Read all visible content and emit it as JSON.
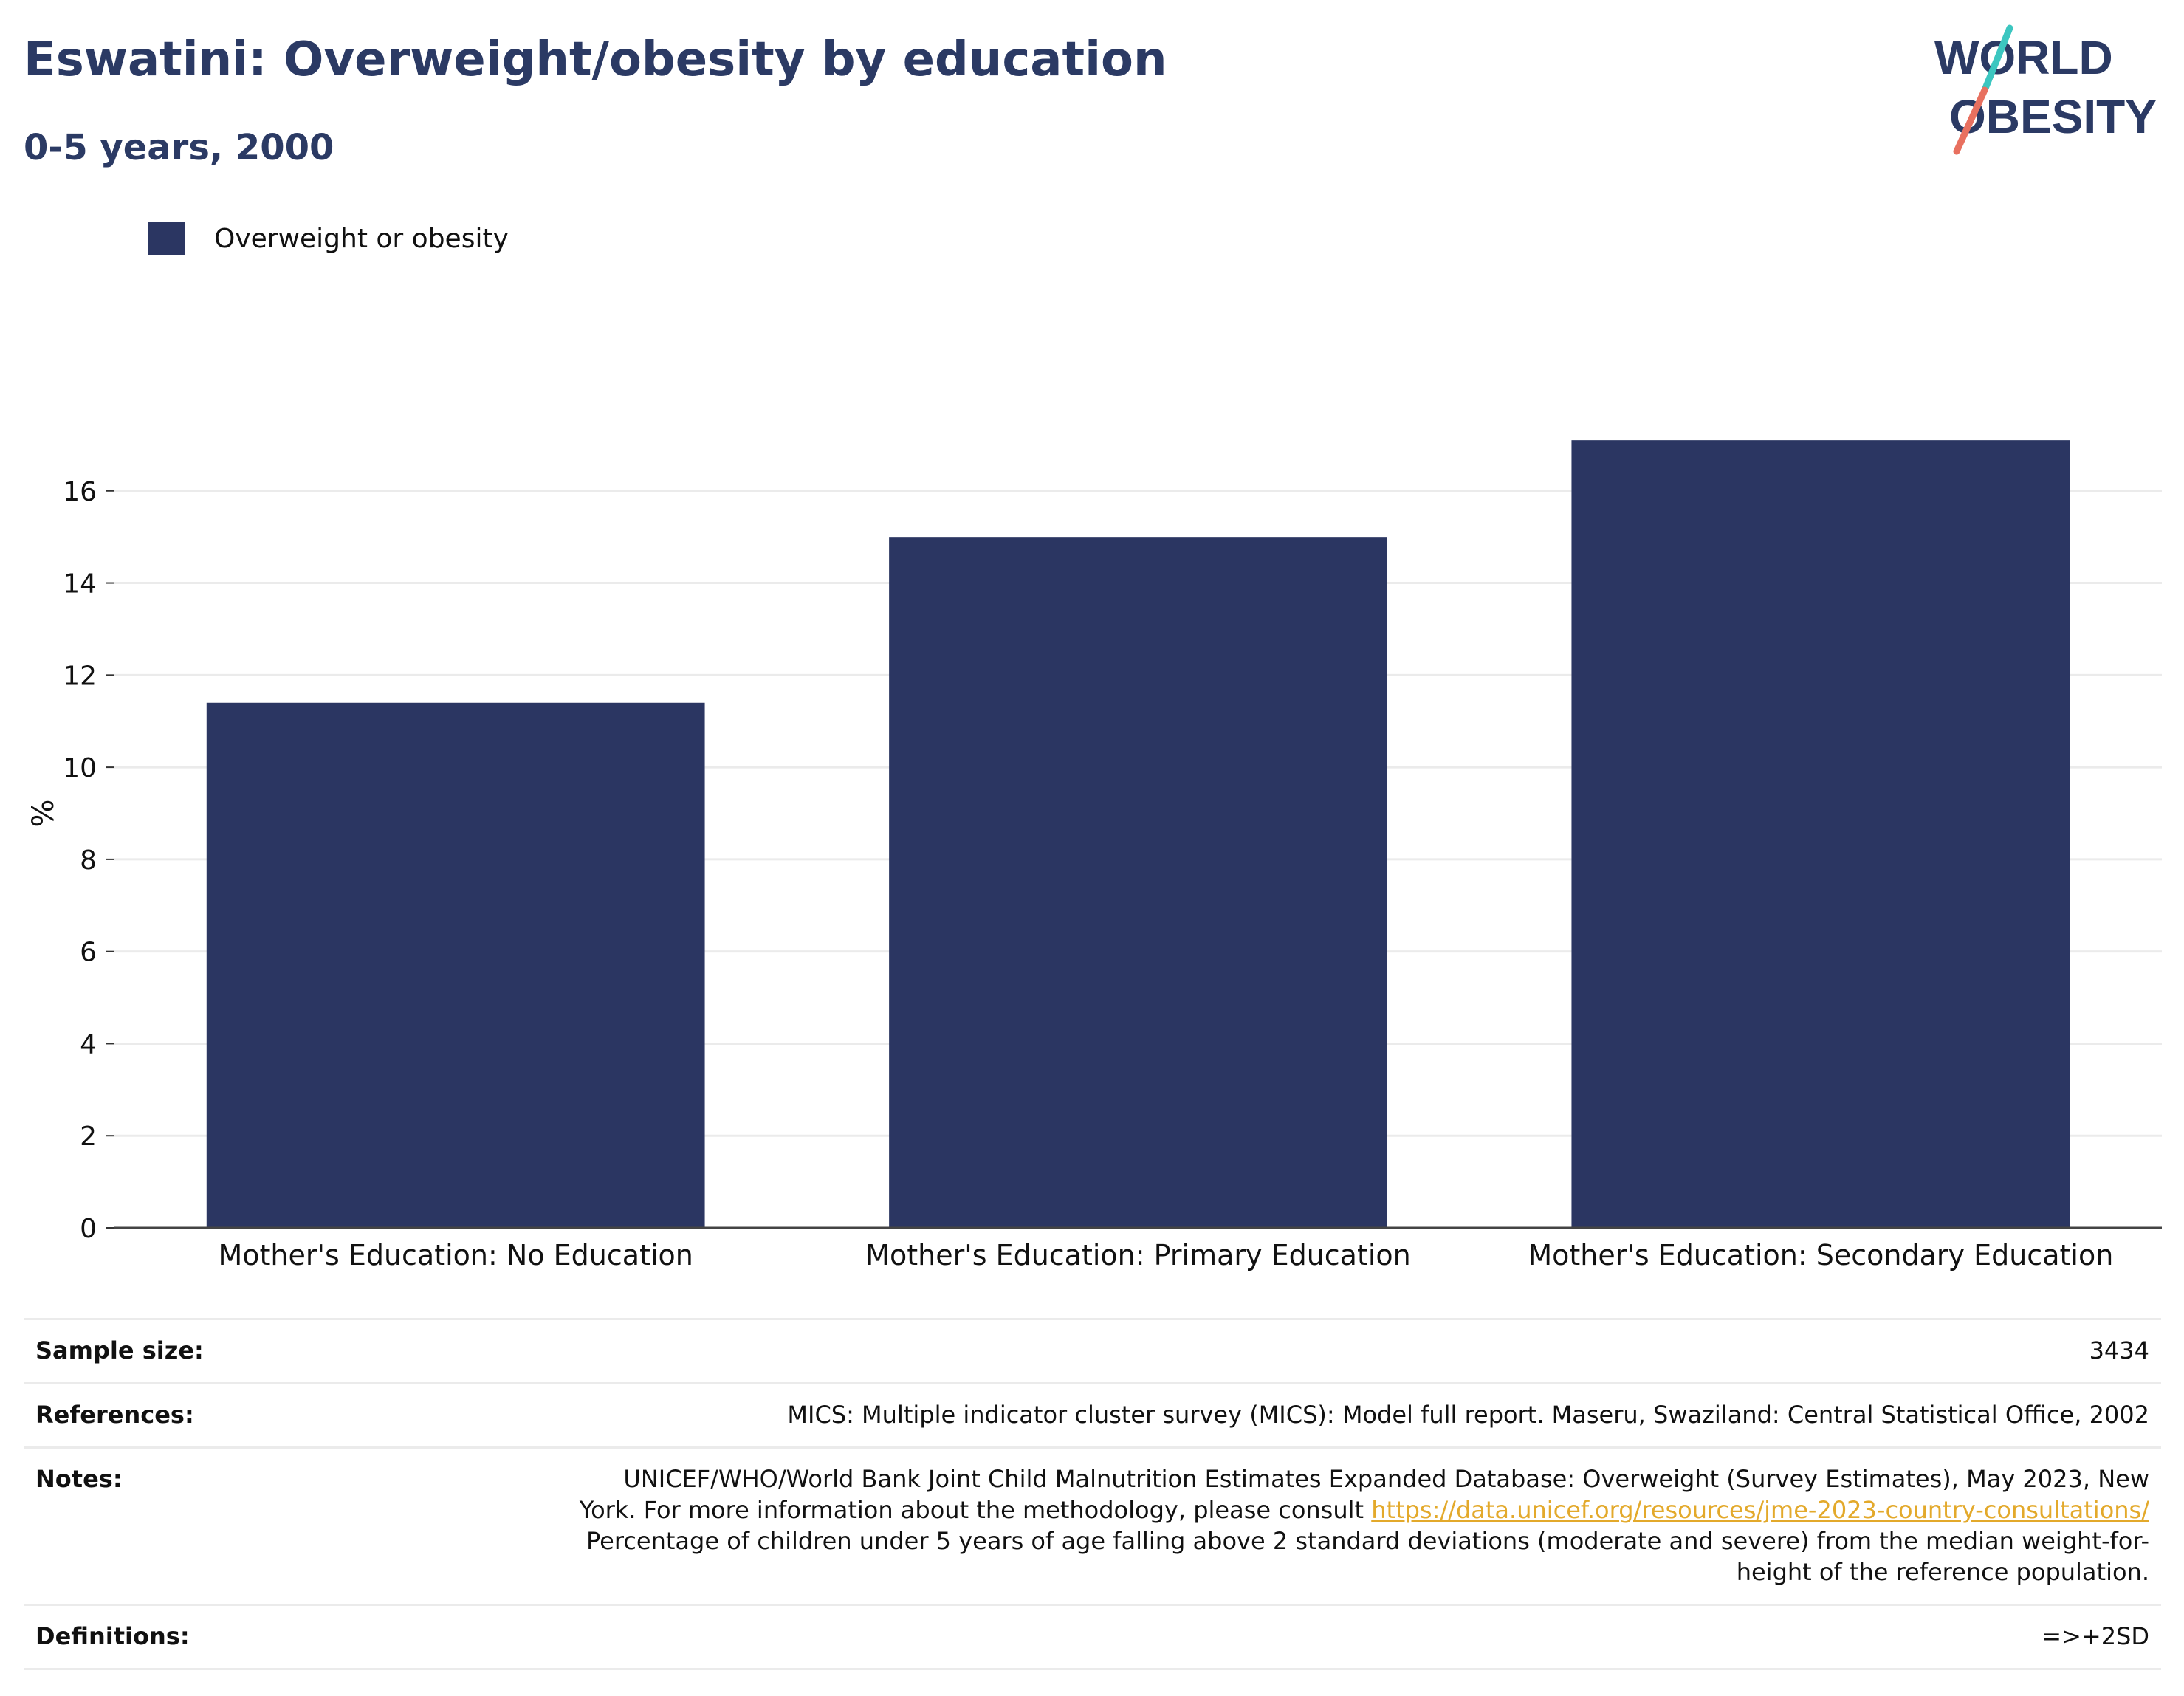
{
  "header": {
    "title": "Eswatini: Overweight/obesity by education",
    "subtitle": "0-5 years, 2000"
  },
  "logo": {
    "line1": "WORLD",
    "line2": "OBESITY",
    "colors": {
      "text": "#2b3a64",
      "slash_top": "#3cc6c0",
      "slash_bottom": "#e8705f"
    }
  },
  "legend": {
    "items": [
      {
        "label": "Overweight or obesity",
        "color": "#2b3662"
      }
    ]
  },
  "chart_data": {
    "type": "bar",
    "categories": [
      "Mother's Education: No Education",
      "Mother's Education: Primary Education",
      "Mother's Education: Secondary Education"
    ],
    "series": [
      {
        "name": "Overweight or obesity",
        "values": [
          11.4,
          15.0,
          17.1
        ],
        "color": "#2b3662"
      }
    ],
    "ylabel": "%",
    "xlabel": "",
    "ylim": [
      0,
      18
    ],
    "yticks": [
      0,
      2,
      4,
      6,
      8,
      10,
      12,
      14,
      16
    ],
    "grid": true,
    "legend_position": "top-left"
  },
  "info": {
    "sample_size_label": "Sample size:",
    "sample_size_value": "3434",
    "references_label": "References:",
    "references_value": "MICS: Multiple indicator cluster survey (MICS): Model full report. Maseru, Swaziland: Central Statistical Office, 2002",
    "notes_label": "Notes:",
    "notes_line1": "UNICEF/WHO/World Bank Joint Child Malnutrition Estimates Expanded Database: Overweight (Survey Estimates), May 2023, New",
    "notes_line2": "York. For more information about the methodology, please consult",
    "notes_link": "https://data.unicef.org/resources/jme-2023-country-consultations/",
    "notes_line3": "Percentage of children under 5 years of age falling above 2 standard deviations (moderate and severe) from the median weight-for-",
    "notes_line4": "height of the reference population.",
    "definitions_label": "Definitions:",
    "definitions_value": "=>+2SD"
  }
}
